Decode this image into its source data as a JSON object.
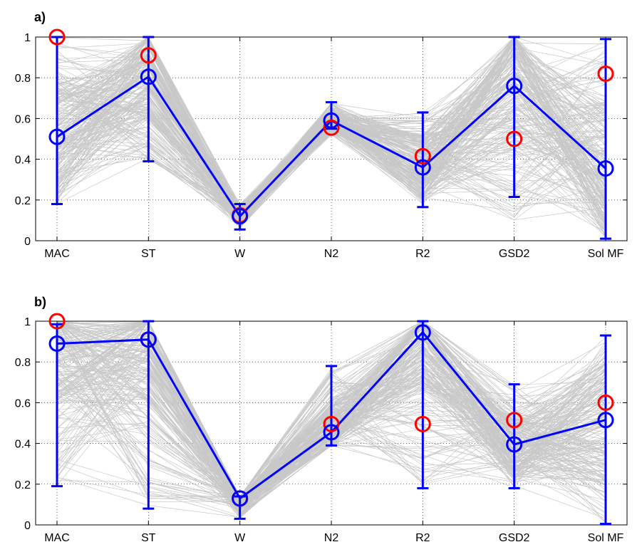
{
  "figure": {
    "panels": [
      {
        "label": "a)"
      },
      {
        "label": "b)"
      }
    ]
  },
  "chart_data": [
    {
      "type": "line",
      "panel_label": "a)",
      "categories": [
        "MAC",
        "ST",
        "W",
        "N2",
        "R2",
        "GSD2",
        "Sol MF"
      ],
      "ylim": [
        0,
        1
      ],
      "yticks": [
        0,
        0.2,
        0.4,
        0.6,
        0.8,
        1
      ],
      "ytick_labels": [
        "0",
        "0.2",
        "0.4",
        "0.6",
        "0.8",
        "1"
      ],
      "grid": true,
      "title": "",
      "xlabel": "",
      "ylabel": "",
      "series": [
        {
          "style": "thin-gray-lines",
          "color": "#c8c8c8",
          "description_range_low": [
            0.18,
            0.39,
            0.06,
            0.52,
            0.17,
            0.1,
            0.01
          ],
          "description_range_high": [
            1.0,
            1.0,
            0.18,
            0.68,
            0.63,
            1.0,
            0.99
          ]
        },
        {
          "style": "blue-line-circles-errorbars",
          "color": "#0000ff",
          "values": [
            0.51,
            0.805,
            0.12,
            0.59,
            0.36,
            0.76,
            0.355
          ],
          "err_low": [
            0.18,
            0.39,
            0.055,
            0.55,
            0.165,
            0.215,
            0.01
          ],
          "err_high": [
            1.0,
            1.0,
            0.18,
            0.68,
            0.63,
            1.0,
            0.99
          ]
        },
        {
          "style": "red-circles",
          "color": "#ff0000",
          "values": [
            1.0,
            0.91,
            0.125,
            0.555,
            0.415,
            0.5,
            0.82
          ]
        }
      ]
    },
    {
      "type": "line",
      "panel_label": "b)",
      "categories": [
        "MAC",
        "ST",
        "W",
        "N2",
        "R2",
        "GSD2",
        "Sol MF"
      ],
      "ylim": [
        0,
        1
      ],
      "yticks": [
        0,
        0.2,
        0.4,
        0.6,
        0.8,
        1
      ],
      "ytick_labels": [
        "0",
        "0.2",
        "0.4",
        "0.6",
        "0.8",
        "1"
      ],
      "grid": true,
      "title": "",
      "xlabel": "",
      "ylabel": "",
      "series": [
        {
          "style": "thin-gray-lines",
          "color": "#c8c8c8",
          "description_range_low": [
            0.19,
            0.08,
            0.03,
            0.39,
            0.18,
            0.18,
            0.005
          ],
          "description_range_high": [
            1.0,
            1.0,
            0.14,
            0.78,
            1.0,
            0.69,
            0.93
          ]
        },
        {
          "style": "blue-line-circles-errorbars",
          "color": "#0000ff",
          "values": [
            0.89,
            0.91,
            0.13,
            0.455,
            0.945,
            0.395,
            0.515
          ],
          "err_low": [
            0.19,
            0.08,
            0.03,
            0.39,
            0.18,
            0.18,
            0.005
          ],
          "err_high": [
            0.985,
            1.0,
            0.14,
            0.78,
            1.0,
            0.69,
            0.93
          ]
        },
        {
          "style": "red-circles",
          "color": "#ff0000",
          "values": [
            1.0,
            0.91,
            0.13,
            0.495,
            0.495,
            0.515,
            0.6
          ]
        }
      ]
    }
  ]
}
